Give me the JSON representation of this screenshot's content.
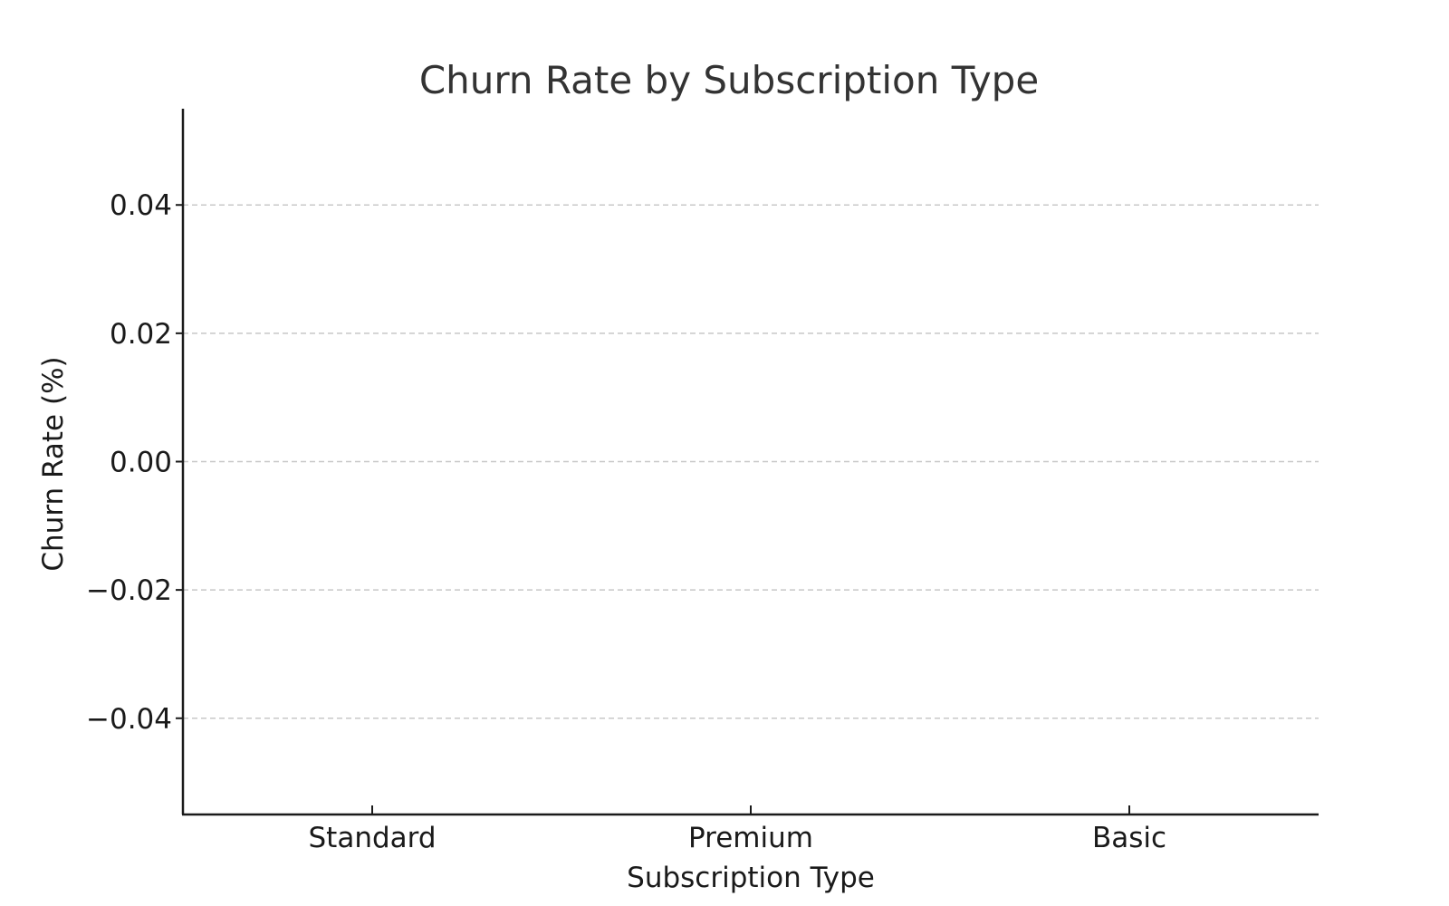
{
  "chart_data": {
    "type": "bar",
    "title": "Churn Rate by Subscription Type",
    "xlabel": "Subscription Type",
    "ylabel": "Churn Rate (%)",
    "categories": [
      "Standard",
      "Premium",
      "Basic"
    ],
    "values": [
      0,
      0,
      0
    ],
    "ylim": [
      -0.055,
      0.055
    ],
    "yticks": [
      0.04,
      0.02,
      0.0,
      -0.02,
      -0.04
    ],
    "ytick_labels": [
      "0.04",
      "0.02",
      "0.00",
      "−0.02",
      "−0.04"
    ],
    "grid": "y-dashed",
    "colors": {
      "grid": "#c8c8c8",
      "axis": "#1a1a1a",
      "title": "#333333"
    }
  }
}
